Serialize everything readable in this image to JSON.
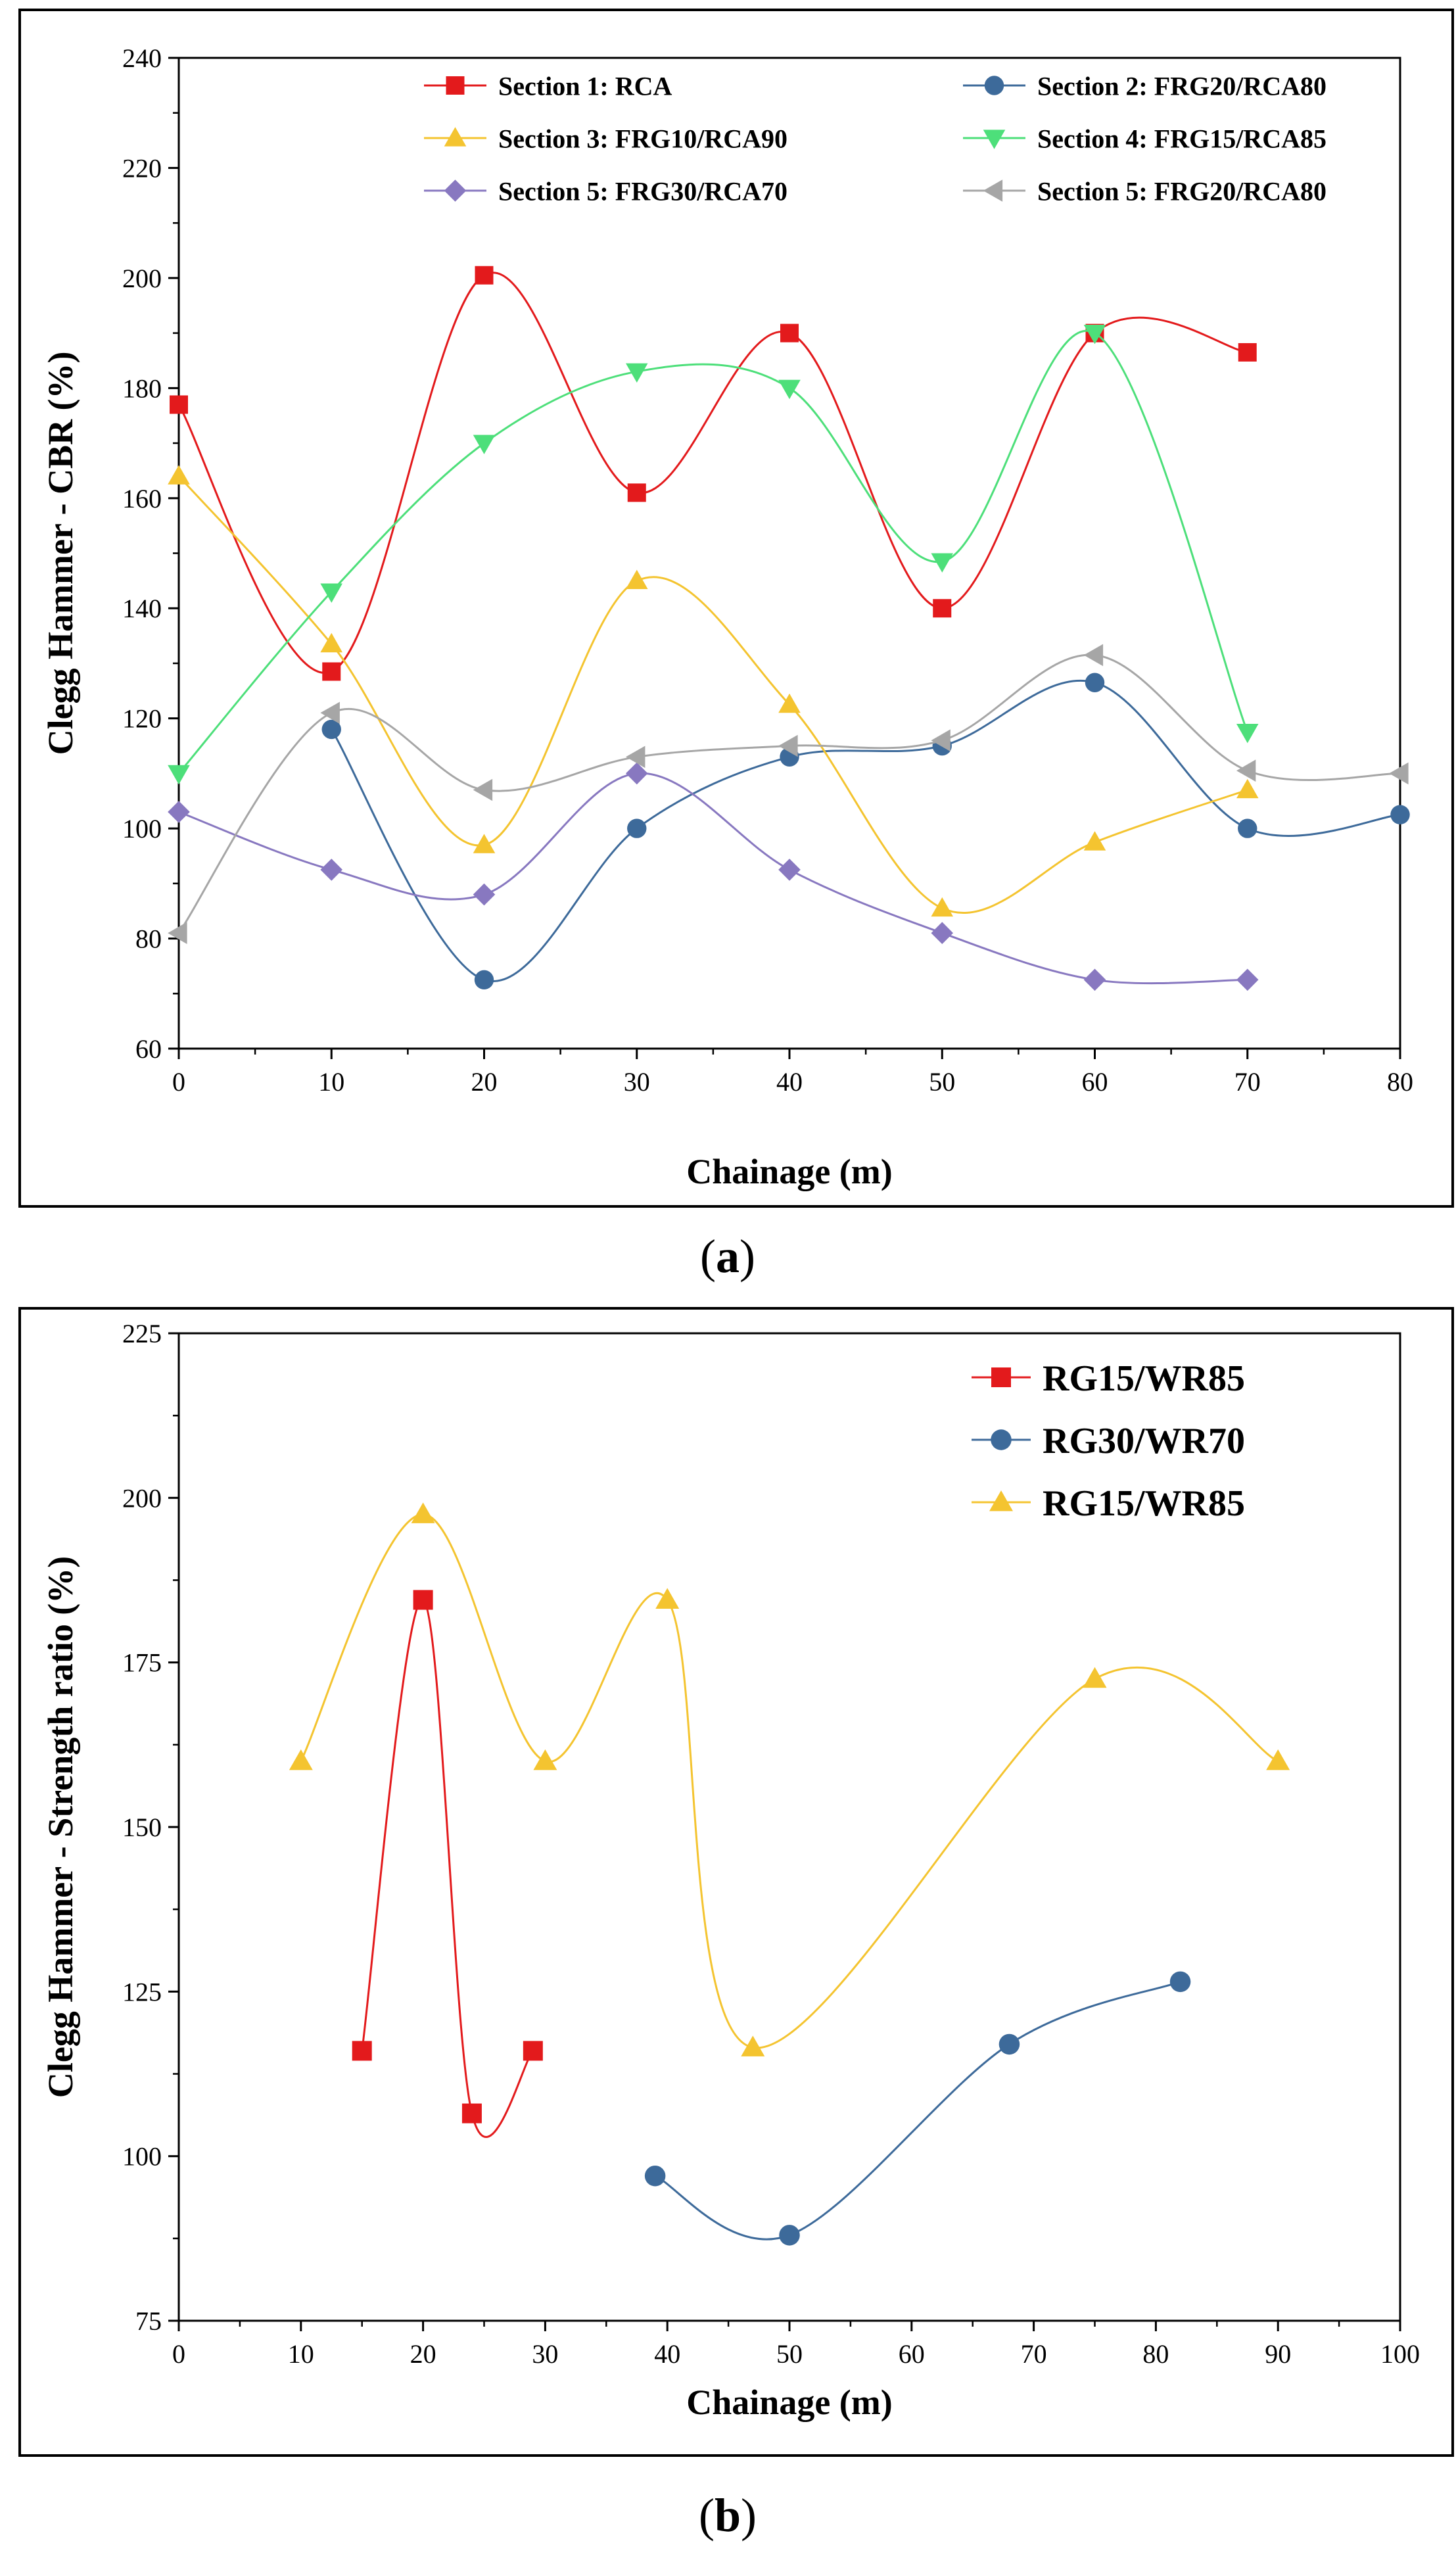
{
  "chart_data": [
    {
      "type": "line",
      "panel_label": "a",
      "title": "",
      "xlabel": "Chainage (m)",
      "ylabel": "Clegg Hammer - CBR (%)",
      "xlim": [
        0,
        80
      ],
      "ylim": [
        60,
        240
      ],
      "xticks": [
        0,
        10,
        20,
        30,
        40,
        50,
        60,
        70,
        80
      ],
      "yticks": [
        60,
        80,
        100,
        120,
        140,
        160,
        180,
        200,
        220,
        240
      ],
      "grid": false,
      "legend_position": "top-right",
      "series": [
        {
          "name": "Section 1: RCA",
          "color": "#e31a1c",
          "marker": "square",
          "x": [
            0,
            10,
            20,
            30,
            40,
            50,
            60,
            70
          ],
          "y": [
            177,
            128.5,
            200.5,
            161,
            190,
            140,
            190,
            186.5
          ]
        },
        {
          "name": "Section 2: FRG20/RCA80",
          "color": "#3d6a9a",
          "marker": "circle",
          "x": [
            10,
            20,
            30,
            40,
            50,
            60,
            70,
            80
          ],
          "y": [
            118,
            72.5,
            100,
            113,
            115,
            126.5,
            100,
            102.5
          ]
        },
        {
          "name": "Section 3: FRG10/RCA90",
          "color": "#f4c430",
          "marker": "triangle-up",
          "x": [
            0,
            10,
            20,
            30,
            40,
            50,
            60,
            70
          ],
          "y": [
            164,
            133.5,
            97,
            145,
            122.5,
            85.5,
            97.5,
            107
          ]
        },
        {
          "name": "Section 4: FRG15/RCA85",
          "color": "#4ddf7a",
          "marker": "triangle-down",
          "x": [
            0,
            10,
            20,
            30,
            40,
            50,
            60,
            70
          ],
          "y": [
            110,
            143,
            170,
            183,
            180,
            148.5,
            190,
            117.5
          ]
        },
        {
          "name": "Section 5: FRG30/RCA70",
          "color": "#8878c0",
          "marker": "diamond",
          "x": [
            0,
            10,
            20,
            30,
            40,
            50,
            60,
            70
          ],
          "y": [
            103,
            92.5,
            88,
            110,
            92.5,
            81,
            72.5,
            72.5
          ]
        },
        {
          "name": "Section 5: FRG20/RCA80",
          "color": "#a6a6a6",
          "marker": "triangle-left",
          "x": [
            0,
            10,
            20,
            30,
            40,
            50,
            60,
            70,
            80
          ],
          "y": [
            81,
            121,
            107,
            113,
            115,
            116,
            131.5,
            110.5,
            110
          ]
        }
      ]
    },
    {
      "type": "line",
      "panel_label": "b",
      "title": "",
      "xlabel": "Chainage (m)",
      "ylabel": "Clegg Hammer - Strength ratio (%)",
      "xlim": [
        0,
        100
      ],
      "ylim": [
        75,
        225
      ],
      "xticks": [
        0,
        10,
        20,
        30,
        40,
        50,
        60,
        70,
        80,
        90,
        100
      ],
      "yticks": [
        75,
        100,
        125,
        150,
        175,
        200,
        225
      ],
      "grid": false,
      "legend_position": "top-right",
      "series": [
        {
          "name": "RG15/WR85",
          "color": "#e31a1c",
          "marker": "square",
          "x": [
            15,
            20,
            24,
            29
          ],
          "y": [
            116,
            184.5,
            106.5,
            116
          ]
        },
        {
          "name": "RG30/WR70",
          "color": "#3d6a9a",
          "marker": "circle",
          "x": [
            39,
            50,
            68,
            82
          ],
          "y": [
            97,
            88,
            117,
            126.5
          ]
        },
        {
          "name": "RG15/WR85",
          "color": "#f4c430",
          "marker": "triangle-up",
          "x": [
            10,
            20,
            30,
            40,
            47,
            75,
            90
          ],
          "y": [
            160,
            197.5,
            160,
            184.5,
            116.5,
            172.5,
            160
          ]
        }
      ]
    }
  ]
}
